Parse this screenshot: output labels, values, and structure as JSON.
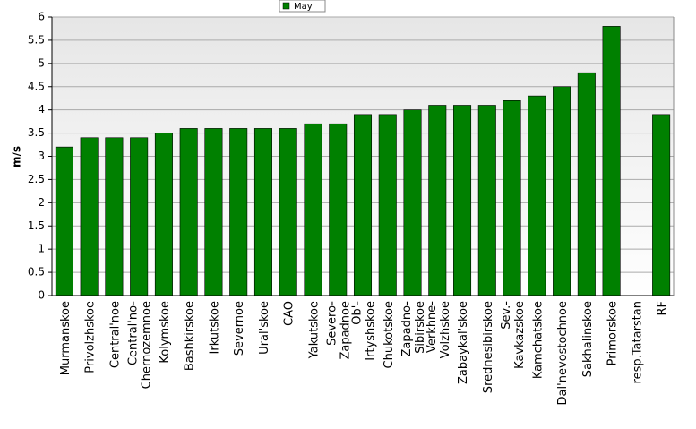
{
  "chart_data": {
    "type": "bar",
    "legend": "May",
    "ylabel": "m/s",
    "color": "#008000",
    "categories": [
      [
        "Murmanskoe"
      ],
      [
        "Privolzhskoe"
      ],
      [
        "Central'noe"
      ],
      [
        "Central'no-",
        "Chernozemnoe"
      ],
      [
        "Kolymskoe"
      ],
      [
        "Bashkirskoe"
      ],
      [
        "Irkutskoe"
      ],
      [
        "Severnoe"
      ],
      [
        "Ural'skoe"
      ],
      [
        "CAO"
      ],
      [
        "Yakutskoe"
      ],
      [
        "Severo-",
        "Zapadnoe"
      ],
      [
        "Ob'-",
        "Irtyshskoe"
      ],
      [
        "Chukotskoe"
      ],
      [
        "Zapadno-",
        "Sibirskoe"
      ],
      [
        "Verkhne-",
        "Volzhskoe"
      ],
      [
        "Zabaykal'skoe"
      ],
      [
        "Srednesibirskoe"
      ],
      [
        "Sev.-",
        "Kavkazskoe"
      ],
      [
        "Kamchatskoe"
      ],
      [
        "Dal'nevostochnoe"
      ],
      [
        "Sakhalinskoe"
      ],
      [
        "Primorskoe"
      ],
      [
        "resp.Tatarstan"
      ],
      [
        "RF"
      ]
    ],
    "values": [
      3.2,
      3.4,
      3.4,
      3.4,
      3.5,
      3.6,
      3.6,
      3.6,
      3.6,
      3.6,
      3.7,
      3.7,
      3.9,
      3.9,
      4.0,
      4.1,
      4.1,
      4.1,
      4.2,
      4.3,
      4.5,
      4.8,
      5.8,
      null,
      3.9
    ],
    "ylim": [
      0,
      6
    ],
    "yticks": [
      0,
      0.5,
      1,
      1.5,
      2,
      2.5,
      3,
      3.5,
      4,
      4.5,
      5,
      5.5,
      6
    ],
    "grid": true
  }
}
